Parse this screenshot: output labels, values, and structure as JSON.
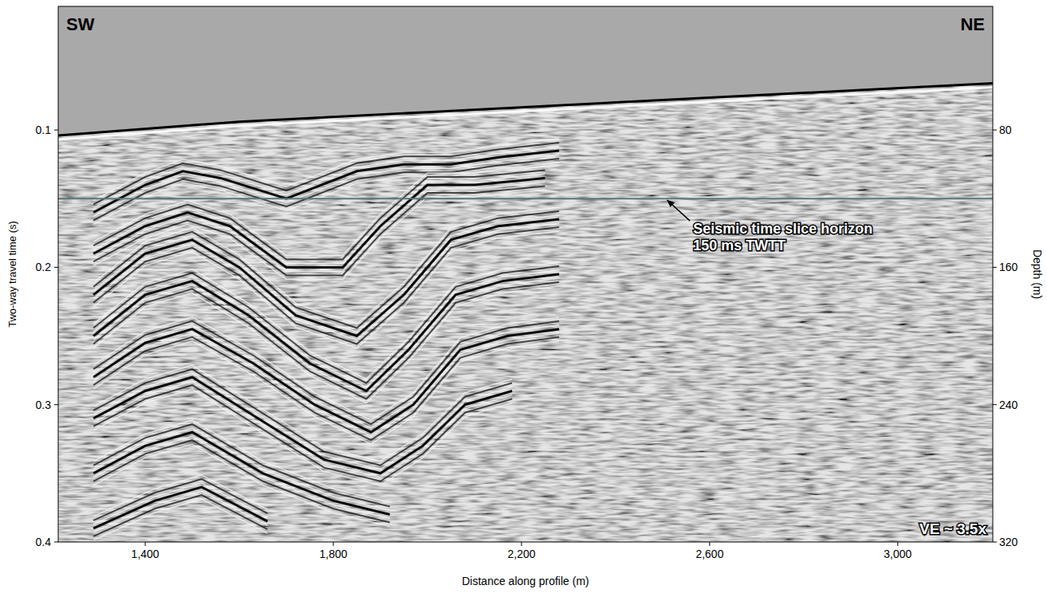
{
  "chart_data": {
    "type": "seismic_section",
    "x_label": "Distance along profile (m)",
    "y_label": "Two-way travel time (s)",
    "y2_label": "Depth (m)",
    "xlim": [
      1215,
      3202
    ],
    "xticks": [
      {
        "value": 1400,
        "label": "1,400"
      },
      {
        "value": 1800,
        "label": "1,800"
      },
      {
        "value": 2200,
        "label": "2,200"
      },
      {
        "value": 2600,
        "label": "2,600"
      },
      {
        "value": 3000,
        "label": "3,000"
      }
    ],
    "ylim": [
      0.01,
      0.4
    ],
    "yticks": [
      0.1,
      0.2,
      0.3,
      0.4
    ],
    "y2lim": [
      8,
      320
    ],
    "y2ticks": [
      80,
      160,
      240,
      320
    ],
    "corner_labels": {
      "left": "SW",
      "right": "NE"
    },
    "ve_label": "VE ~ 3.5x",
    "horizon": {
      "t": 0.15,
      "color": "#4f7d74"
    },
    "annotation": {
      "text_lines": [
        "Seismic time slice horizon",
        "150 ms TWTT"
      ],
      "x": 2565,
      "t": 0.172,
      "arrow_to_x": 2510,
      "arrow_to_t": 0.15
    },
    "seafloor": {
      "x": [
        1215,
        1600,
        2000,
        2400,
        2800,
        3202
      ],
      "t": [
        0.104,
        0.094,
        0.087,
        0.08,
        0.073,
        0.066
      ]
    },
    "reflectors": [
      {
        "x": [
          1290,
          1400,
          1480,
          1560,
          1700,
          1850,
          1950,
          2050,
          2150,
          2280
        ],
        "t": [
          0.16,
          0.14,
          0.13,
          0.135,
          0.15,
          0.13,
          0.125,
          0.125,
          0.12,
          0.115
        ]
      },
      {
        "x": [
          1290,
          1400,
          1490,
          1580,
          1700,
          1820,
          1900,
          2000,
          2100,
          2250
        ],
        "t": [
          0.19,
          0.17,
          0.16,
          0.17,
          0.2,
          0.2,
          0.17,
          0.14,
          0.14,
          0.135
        ]
      },
      {
        "x": [
          1290,
          1400,
          1500,
          1600,
          1720,
          1850,
          1950,
          2050,
          2150,
          2280
        ],
        "t": [
          0.22,
          0.19,
          0.18,
          0.2,
          0.235,
          0.25,
          0.22,
          0.18,
          0.17,
          0.165
        ]
      },
      {
        "x": [
          1290,
          1400,
          1500,
          1620,
          1750,
          1870,
          1960,
          2060,
          2160,
          2280
        ],
        "t": [
          0.25,
          0.22,
          0.21,
          0.235,
          0.27,
          0.29,
          0.26,
          0.22,
          0.21,
          0.205
        ]
      },
      {
        "x": [
          1290,
          1400,
          1500,
          1630,
          1760,
          1880,
          1970,
          2070,
          2170,
          2280
        ],
        "t": [
          0.28,
          0.255,
          0.245,
          0.27,
          0.3,
          0.32,
          0.3,
          0.26,
          0.25,
          0.245
        ]
      },
      {
        "x": [
          1290,
          1400,
          1500,
          1640,
          1780,
          1900,
          1990,
          2080,
          2180
        ],
        "t": [
          0.31,
          0.29,
          0.28,
          0.31,
          0.34,
          0.35,
          0.33,
          0.3,
          0.29
        ]
      },
      {
        "x": [
          1290,
          1400,
          1500,
          1650,
          1800,
          1920
        ],
        "t": [
          0.35,
          0.33,
          0.32,
          0.35,
          0.37,
          0.38
        ]
      },
      {
        "x": [
          1290,
          1420,
          1520,
          1660
        ],
        "t": [
          0.39,
          0.37,
          0.36,
          0.385
        ]
      }
    ]
  }
}
